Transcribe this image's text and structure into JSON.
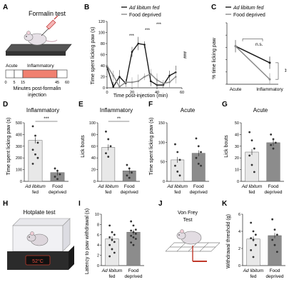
{
  "panels": {
    "A": {
      "letter": "A",
      "title": "Formalin test",
      "timeline": {
        "acute_label": "Acute",
        "inflammatory_label": "Inflammatory",
        "ticks": [
          "0",
          "5",
          "15",
          "45",
          "60"
        ],
        "xlabel_line1": "Minutes post-formalin",
        "xlabel_line2": "injection",
        "inflammatory_color": "#f08070"
      }
    },
    "B": {
      "letter": "B",
      "ylabel": "Time spent licking paw (s)",
      "xlabel": "Time post-injection (min)",
      "sig_top": "***",
      "sig_mid1": "***",
      "sig_mid2": "***",
      "sig_right": "###"
    },
    "C": {
      "letter": "C",
      "ylabel": "% time licking paw",
      "ns_label": "n.s.",
      "sig_label": "**",
      "categories": [
        "Acute",
        "Inflammatory"
      ]
    },
    "D": {
      "letter": "D",
      "title": "Inflammatory",
      "ylabel": "Time spent licking paw (s)",
      "sig": "***"
    },
    "E": {
      "letter": "E",
      "title": "Inflammatory",
      "ylabel": "Lick bouts",
      "sig": "**"
    },
    "F": {
      "letter": "F",
      "title": "Acute",
      "ylabel": "Time spent licking paw (s)"
    },
    "G": {
      "letter": "G",
      "title": "Acute",
      "ylabel": "Lick bouts"
    },
    "H": {
      "letter": "H",
      "title": "Hotplate test",
      "display": "52°C"
    },
    "I": {
      "letter": "I",
      "ylabel": "Latency to paw withdrawal (s)"
    },
    "J": {
      "letter": "J",
      "title_line1": "Von Frey",
      "title_line2": "Test"
    },
    "K": {
      "letter": "K",
      "ylabel": "Withdrawal threshold (g)"
    }
  },
  "groups": {
    "fed_line1": "Ad libitum",
    "fed_line2": "fed",
    "deprived_line1": "Food",
    "deprived_line2": "deprived"
  },
  "legend": {
    "fed": "Ad libitum fed",
    "deprived": "Food deprived"
  },
  "colors": {
    "fed": "#1a1a1a",
    "deprived": "#8a8a8a",
    "fed_bar": "#e8e8e8",
    "deprived_bar": "#8c8c8c",
    "heat": "#c0392b"
  },
  "chart_data": [
    {
      "panel": "B",
      "type": "line",
      "x": [
        0,
        5,
        10,
        15,
        20,
        25,
        30,
        35,
        40,
        45,
        50,
        55
      ],
      "ylim": [
        0,
        120
      ],
      "yticks": [
        0,
        20,
        40,
        60,
        80,
        100,
        120
      ],
      "xlim": [
        0,
        60
      ],
      "xticks": [
        0,
        20,
        40,
        60
      ],
      "series": [
        {
          "name": "Ad libitum fed",
          "values": [
            38,
            2,
            20,
            8,
            65,
            80,
            78,
            12,
            5,
            5,
            22,
            28
          ]
        },
        {
          "name": "Food deprived",
          "values": [
            40,
            22,
            2,
            10,
            10,
            12,
            20,
            25,
            14,
            8,
            10,
            20
          ]
        }
      ]
    },
    {
      "panel": "C",
      "type": "line",
      "categories": [
        "Acute",
        "Inflammatory"
      ],
      "ylim": [
        0,
        100
      ],
      "yticks": [
        0,
        20,
        40,
        60,
        80,
        100
      ],
      "series": [
        {
          "name": "Ad libitum fed",
          "values": [
            62,
            35
          ]
        },
        {
          "name": "Food deprived",
          "values": [
            62,
            8
          ]
        }
      ]
    },
    {
      "panel": "D",
      "type": "bar",
      "categories": [
        "Ad libitum fed",
        "Food deprived"
      ],
      "values": [
        350,
        75
      ],
      "ylim": [
        0,
        500
      ],
      "yticks": [
        0,
        100,
        200,
        300,
        400,
        500
      ],
      "points": [
        [
          470,
          390,
          330,
          270,
          230,
          200,
          150
        ],
        [
          110,
          90,
          60,
          40,
          20
        ]
      ]
    },
    {
      "panel": "E",
      "type": "bar",
      "categories": [
        "Ad libitum fed",
        "Food deprived"
      ],
      "values": [
        58,
        18
      ],
      "ylim": [
        0,
        100
      ],
      "yticks": [
        0,
        20,
        40,
        60,
        80,
        100
      ],
      "points": [
        [
          85,
          72,
          60,
          48,
          42
        ],
        [
          28,
          22,
          15,
          10,
          6
        ]
      ]
    },
    {
      "panel": "F",
      "type": "bar",
      "categories": [
        "Ad libitum fed",
        "Food deprived"
      ],
      "values": [
        55,
        72
      ],
      "ylim": [
        0,
        150
      ],
      "yticks": [
        0,
        50,
        100,
        150
      ],
      "points": [
        [
          95,
          75,
          55,
          40,
          25,
          15
        ],
        [
          110,
          90,
          75,
          60,
          45,
          40
        ]
      ]
    },
    {
      "panel": "G",
      "type": "bar",
      "categories": [
        "Ad libitum fed",
        "Food deprived"
      ],
      "values": [
        25,
        33
      ],
      "ylim": [
        0,
        50
      ],
      "yticks": [
        0,
        10,
        20,
        30,
        40,
        50
      ],
      "points": [
        [
          42,
          35,
          28,
          22,
          14,
          8
        ],
        [
          40,
          36,
          33,
          31,
          28
        ]
      ]
    },
    {
      "panel": "I",
      "type": "bar",
      "categories": [
        "Ad libitum fed",
        "Food deprived"
      ],
      "values": [
        5.2,
        6.5
      ],
      "ylim": [
        0,
        10
      ],
      "yticks": [
        0,
        2,
        4,
        6,
        8,
        10
      ],
      "points": [
        [
          7.8,
          6.5,
          6.0,
          5.5,
          5.0,
          4.6,
          4.0,
          3.2,
          2.5,
          1.8
        ],
        [
          8.6,
          7.8,
          7.0,
          6.8,
          6.5,
          6.2,
          5.8,
          5.5,
          5.2,
          4.5,
          4.0
        ]
      ]
    },
    {
      "panel": "K",
      "type": "bar",
      "categories": [
        "Ad libitum fed",
        "Food deprived"
      ],
      "values": [
        3.1,
        3.5
      ],
      "ylim": [
        0,
        6
      ],
      "yticks": [
        0,
        2,
        4,
        6
      ],
      "points": [
        [
          5.0,
          4.0,
          3.6,
          3.2,
          3.0,
          2.4,
          1.8,
          1.0
        ],
        [
          5.4,
          4.2,
          3.6,
          3.0,
          2.4,
          1.6
        ]
      ]
    }
  ]
}
